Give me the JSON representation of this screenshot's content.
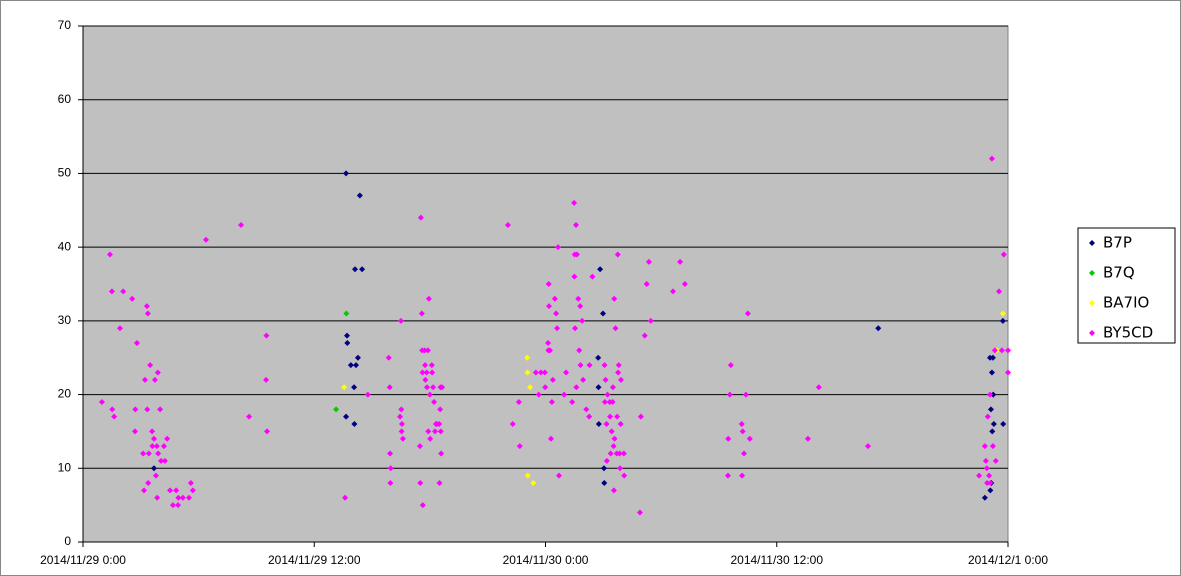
{
  "chart_data": {
    "type": "scatter",
    "xlim": [
      "2014-11-29 00:00",
      "2014-12-01 00:00"
    ],
    "xticks": [
      {
        "value": "2014-11-29 00:00",
        "label": "2014/11/29 0:00"
      },
      {
        "value": "2014-11-29 12:00",
        "label": "2014/11/29 12:00"
      },
      {
        "value": "2014-11-30 00:00",
        "label": "2014/11/30 0:00"
      },
      {
        "value": "2014-11-30 12:00",
        "label": "2014/11/30 12:00"
      },
      {
        "value": "2014-12-01 00:00",
        "label": "2014/12/1 0:00"
      }
    ],
    "ylim": [
      0,
      70
    ],
    "yticks": [
      0,
      10,
      20,
      30,
      40,
      50,
      60,
      70
    ],
    "grid": true,
    "legend": "right",
    "series": [
      {
        "name": "B7P",
        "color": "#000080",
        "x": [
          "2014-11-29 03:41",
          "2014-11-29 13:39",
          "2014-11-29 14:22",
          "2014-11-29 14:07",
          "2014-11-29 14:29",
          "2014-11-29 13:42",
          "2014-11-29 13:43",
          "2014-11-29 13:54",
          "2014-11-29 14:10",
          "2014-11-29 14:16",
          "2014-11-29 14:04",
          "2014-11-29 13:39",
          "2014-11-29 14:05",
          "2014-11-30 02:50",
          "2014-11-30 02:59",
          "2014-11-30 02:44",
          "2014-11-30 02:45",
          "2014-11-30 02:46",
          "2014-11-30 03:02",
          "2014-11-30 03:03",
          "2014-11-30 17:16",
          "2014-11-30 23:04",
          "2014-11-30 23:13",
          "2014-11-30 23:10",
          "2014-11-30 23:14",
          "2014-11-30 23:07",
          "2014-11-30 23:11",
          "2014-11-30 23:16",
          "2014-11-30 23:44",
          "2014-11-30 23:45",
          "2014-11-30 22:48",
          "2014-11-30 23:05",
          "2014-11-30 23:08"
        ],
        "values": [
          10,
          50,
          47,
          37,
          37,
          28,
          27,
          24,
          24,
          25,
          21,
          17,
          16,
          37,
          31,
          25,
          21,
          16,
          10,
          8,
          29,
          25,
          25,
          23,
          20,
          18,
          15,
          16,
          30,
          16,
          6,
          7,
          8
        ]
      },
      {
        "name": "B7Q",
        "color": "#00cc00",
        "x": [
          "2014-11-29 13:40",
          "2014-11-29 13:08"
        ],
        "values": [
          31,
          18
        ]
      },
      {
        "name": "BA7IO",
        "color": "#ffff00",
        "x": [
          "2014-11-29 13:33",
          "2014-11-29 23:03",
          "2014-11-29 23:04",
          "2014-11-29 23:12",
          "2014-11-29 23:05",
          "2014-11-29 23:22",
          "2014-11-30 23:26",
          "2014-11-30 23:44"
        ],
        "values": [
          21,
          25,
          23,
          21,
          9,
          8,
          26,
          31
        ]
      },
      {
        "name": "BY5CD",
        "color": "#ff00ff",
        "x": [
          "2014-11-29 00:59",
          "2014-11-29 01:24",
          "2014-11-29 01:30",
          "2014-11-29 01:31",
          "2014-11-29 01:37",
          "2014-11-29 01:55",
          "2014-11-29 02:05",
          "2014-11-29 02:33",
          "2014-11-29 02:42",
          "2014-11-29 02:48",
          "2014-11-29 02:43",
          "2014-11-29 03:07",
          "2014-11-29 03:13",
          "2014-11-29 03:19",
          "2014-11-29 03:22",
          "2014-11-29 03:20",
          "2014-11-29 03:25",
          "2014-11-29 03:29",
          "2014-11-29 03:10",
          "2014-11-29 03:23",
          "2014-11-29 03:35",
          "2014-11-29 03:36",
          "2014-11-29 03:41",
          "2014-11-29 03:44",
          "2014-11-29 03:47",
          "2014-11-29 03:53",
          "2014-11-29 03:50",
          "2014-11-29 03:54",
          "2014-11-29 03:51",
          "2014-11-29 04:00",
          "2014-11-29 04:03",
          "2014-11-29 04:15",
          "2014-11-29 04:12",
          "2014-11-29 04:22",
          "2014-11-29 04:31",
          "2014-11-29 04:50",
          "2014-11-29 04:40",
          "2014-11-29 04:56",
          "2014-11-29 04:57",
          "2014-11-29 05:11",
          "2014-11-29 05:30",
          "2014-11-29 05:36",
          "2014-11-29 05:42",
          "2014-11-29 06:23",
          "2014-11-29 08:12",
          "2014-11-29 08:37",
          "2014-11-29 09:30",
          "2014-11-29 09:31",
          "2014-11-29 09:33",
          "2014-11-29 13:36",
          "2014-11-29 14:47",
          "2014-11-29 15:52",
          "2014-11-29 15:55",
          "2014-11-29 15:56",
          "2014-11-29 15:58",
          "2014-11-29 15:57",
          "2014-11-29 16:30",
          "2014-11-29 16:31",
          "2014-11-29 16:27",
          "2014-11-29 16:33",
          "2014-11-29 16:32",
          "2014-11-29 16:36",
          "2014-11-29 17:32",
          "2014-11-29 17:35",
          "2014-11-29 17:36",
          "2014-11-29 17:37",
          "2014-11-29 17:44",
          "2014-11-29 17:45",
          "2014-11-29 17:46",
          "2014-11-29 17:50",
          "2014-11-29 17:54",
          "2014-11-29 17:51",
          "2014-11-29 17:29",
          "2014-11-29 17:30",
          "2014-11-29 17:38",
          "2014-11-29 17:55",
          "2014-11-29 17:57",
          "2014-11-29 18:00",
          "2014-11-29 18:01",
          "2014-11-29 18:06",
          "2014-11-29 18:07",
          "2014-11-29 18:10",
          "2014-11-29 18:13",
          "2014-11-29 18:16",
          "2014-11-29 18:19",
          "2014-11-29 18:22",
          "2014-11-29 18:32",
          "2014-11-29 18:33",
          "2014-11-29 18:38",
          "2014-11-29 18:29",
          "2014-11-29 18:34",
          "2014-11-29 18:35",
          "2014-11-29 18:30",
          "2014-11-29 22:03",
          "2014-11-29 22:18",
          "2014-11-29 22:37",
          "2014-11-29 22:40",
          "2014-11-29 23:30",
          "2014-11-29 23:39",
          "2014-11-29 23:46",
          "2014-11-29 23:58",
          "2014-11-29 23:59",
          "2014-11-30 00:08",
          "2014-11-30 00:09",
          "2014-11-30 00:10",
          "2014-11-30 00:11",
          "2014-11-30 00:14",
          "2014-11-30 00:17",
          "2014-11-30 00:20",
          "2014-11-30 00:23",
          "2014-11-30 00:29",
          "2014-11-30 00:33",
          "2014-11-30 00:36",
          "2014-11-30 00:39",
          "2014-11-30 00:42",
          "2014-11-30 00:58",
          "2014-11-30 01:04",
          "2014-11-30 01:23",
          "2014-11-30 01:29",
          "2014-11-30 01:30",
          "2014-11-30 01:31",
          "2014-11-30 01:32",
          "2014-11-30 01:35",
          "2014-11-30 01:36",
          "2014-11-30 01:38",
          "2014-11-30 01:42",
          "2014-11-30 01:45",
          "2014-11-30 01:48",
          "2014-11-30 01:49",
          "2014-11-30 01:54",
          "2014-11-30 01:57",
          "2014-11-30 02:07",
          "2014-11-30 02:16",
          "2014-11-30 02:17",
          "2014-11-30 02:26",
          "2014-11-30 03:04",
          "2014-11-30 03:05",
          "2014-11-30 03:07",
          "2014-11-30 03:10",
          "2014-11-30 03:13",
          "2014-11-30 03:11",
          "2014-11-30 03:20",
          "2014-11-30 03:21",
          "2014-11-30 03:23",
          "2014-11-30 03:26",
          "2014-11-30 03:29",
          "2014-11-30 03:30",
          "2014-11-30 03:32",
          "2014-11-30 03:33",
          "2014-11-30 03:34",
          "2014-11-30 03:35",
          "2014-11-30 03:38",
          "2014-11-30 03:42",
          "2014-11-30 03:43",
          "2014-11-30 03:45",
          "2014-11-30 03:46",
          "2014-11-30 03:48",
          "2014-11-30 03:51",
          "2014-11-30 03:52",
          "2014-11-30 03:54",
          "2014-11-30 03:55",
          "2014-11-30 04:04",
          "2014-11-30 04:05",
          "2014-11-30 04:54",
          "2014-11-30 04:57",
          "2014-11-30 05:09",
          "2014-11-30 05:15",
          "2014-11-30 05:22",
          "2014-11-30 05:28",
          "2014-11-30 06:37",
          "2014-11-30 06:59",
          "2014-11-30 07:14",
          "2014-11-30 09:28",
          "2014-11-30 09:29",
          "2014-11-30 09:34",
          "2014-11-30 09:37",
          "2014-11-30 10:11",
          "2014-11-30 10:12",
          "2014-11-30 10:14",
          "2014-11-30 10:18",
          "2014-11-30 10:24",
          "2014-11-30 10:30",
          "2014-11-30 10:36",
          "2014-11-30 13:37",
          "2014-11-30 14:11",
          "2014-11-30 16:44",
          "2014-11-30 22:30",
          "2014-11-30 22:48",
          "2014-11-30 22:51",
          "2014-11-30 22:54",
          "2014-11-30 22:55",
          "2014-11-30 22:57",
          "2014-11-30 23:01",
          "2014-11-30 23:04",
          "2014-11-30 23:05",
          "2014-11-30 23:10",
          "2014-11-30 23:13",
          "2014-11-30 23:19",
          "2014-11-30 23:22",
          "2014-11-30 23:32",
          "2014-11-30 23:41",
          "2014-11-30 23:47",
          "2014-12-01 00:00",
          "2014-12-01 00:00"
        ],
        "values": [
          19,
          39,
          34,
          18,
          17,
          29,
          34,
          33,
          15,
          27,
          18,
          12,
          22,
          32,
          31,
          18,
          12,
          24,
          7,
          8,
          15,
          13,
          14,
          22,
          9,
          23,
          13,
          12,
          6,
          18,
          11,
          11,
          13,
          14,
          7,
          7,
          5,
          5,
          6,
          6,
          6,
          8,
          7,
          41,
          43,
          17,
          22,
          28,
          15,
          6,
          20,
          25,
          21,
          12,
          10,
          8,
          30,
          18,
          17,
          16,
          15,
          14,
          44,
          31,
          26,
          23,
          26,
          24,
          22,
          23,
          26,
          21,
          13,
          8,
          5,
          15,
          33,
          20,
          14,
          24,
          23,
          21,
          19,
          15,
          16,
          16,
          18,
          21,
          21,
          16,
          15,
          12,
          8,
          43,
          16,
          19,
          13,
          23,
          20,
          23,
          23,
          21,
          27,
          26,
          35,
          32,
          26,
          14,
          19,
          22,
          33,
          31,
          29,
          40,
          9,
          20,
          23,
          19,
          46,
          36,
          39,
          29,
          43,
          21,
          39,
          33,
          26,
          32,
          24,
          30,
          22,
          18,
          17,
          24,
          36,
          24,
          19,
          22,
          16,
          20,
          11,
          19,
          17,
          12,
          15,
          19,
          21,
          13,
          7,
          33,
          14,
          29,
          12,
          17,
          39,
          23,
          24,
          12,
          10,
          16,
          22,
          12,
          9,
          4,
          17,
          28,
          35,
          38,
          30,
          34,
          38,
          35,
          9,
          14,
          20,
          24,
          16,
          9,
          15,
          12,
          20,
          31,
          14,
          14,
          21,
          13,
          9,
          13,
          11,
          10,
          8,
          17,
          9,
          20,
          8,
          52,
          13,
          26,
          11,
          34,
          26,
          39,
          26,
          23
        ]
      }
    ]
  }
}
